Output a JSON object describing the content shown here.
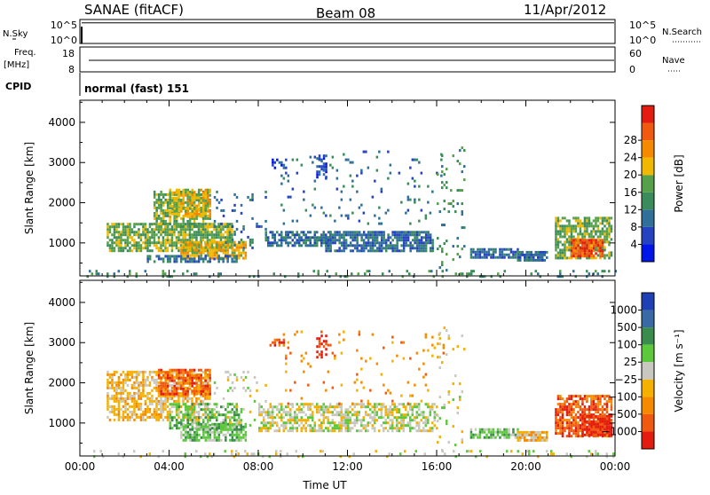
{
  "header": {
    "station": "SANAE (fitACF)",
    "beam": "Beam 08",
    "date": "11/Apr/2012"
  },
  "panels": {
    "nsky": {
      "left_label": "N.Sky",
      "right_label": "N.Search",
      "ticks_left": [
        "10^5",
        "10^0"
      ],
      "ticks_right": [
        "10^5",
        "10^0"
      ],
      "level": 0.86
    },
    "freq": {
      "left_label_1": "Freq.",
      "left_label_2": "[MHz]",
      "right_label": "Nave",
      "ticks_left": [
        "18",
        "8"
      ],
      "ticks_right": [
        "60",
        "0"
      ],
      "level": 0.5
    },
    "cpid": {
      "label": "CPID",
      "text": "normal (fast) 151"
    }
  },
  "chart_data": [
    {
      "type": "heatmap",
      "name": "power",
      "ylabel": "Slant Range [km]",
      "yticks": [
        "1000",
        "2000",
        "3000",
        "4000"
      ],
      "ylim": [
        180,
        4550
      ],
      "colorbar": {
        "label": "Power [dB]",
        "ticks": [
          "4",
          "8",
          "12",
          "16",
          "20",
          "24",
          "28"
        ],
        "colors": [
          "#0015e8",
          "#2543c0",
          "#2f6f9a",
          "#3a8c5a",
          "#57a04a",
          "#f0b800",
          "#f58a00",
          "#f05a10",
          "#e41b0f"
        ]
      },
      "echo_regions": [
        {
          "x": [
            1.2,
            6.8
          ],
          "y": [
            800,
            1500
          ],
          "dens": 0.75,
          "level": 4
        },
        {
          "x": [
            3.3,
            5.8
          ],
          "y": [
            1400,
            2300
          ],
          "dens": 0.7,
          "level": 4
        },
        {
          "x": [
            4.0,
            5.8
          ],
          "y": [
            1650,
            2350
          ],
          "dens": 0.6,
          "level": 5
        },
        {
          "x": [
            4.5,
            7.4
          ],
          "y": [
            650,
            1050
          ],
          "dens": 0.8,
          "level": 5
        },
        {
          "x": [
            3.0,
            7.0
          ],
          "y": [
            560,
            700
          ],
          "dens": 0.65,
          "level": 2
        },
        {
          "x": [
            6.0,
            8.3
          ],
          "y": [
            900,
            2300
          ],
          "dens": 0.1,
          "level": 2
        },
        {
          "x": [
            8.3,
            11.2
          ],
          "y": [
            950,
            1300
          ],
          "dens": 0.7,
          "level": 2
        },
        {
          "x": [
            11.0,
            15.8
          ],
          "y": [
            820,
            1300
          ],
          "dens": 0.78,
          "level": 2
        },
        {
          "x": [
            9.0,
            16.3
          ],
          "y": [
            1500,
            3300
          ],
          "dens": 0.05,
          "level": 2
        },
        {
          "x": [
            8.5,
            9.2
          ],
          "y": [
            2900,
            3100
          ],
          "dens": 0.5,
          "level": 1
        },
        {
          "x": [
            10.6,
            11.0
          ],
          "y": [
            2650,
            3200
          ],
          "dens": 0.5,
          "level": 1
        },
        {
          "x": [
            17.5,
            19.6
          ],
          "y": [
            640,
            870
          ],
          "dens": 0.7,
          "level": 2
        },
        {
          "x": [
            19.6,
            20.9
          ],
          "y": [
            600,
            800
          ],
          "dens": 0.85,
          "level": 2
        },
        {
          "x": [
            21.3,
            23.8
          ],
          "y": [
            650,
            1650
          ],
          "dens": 0.7,
          "level": 4
        },
        {
          "x": [
            22.0,
            23.4
          ],
          "y": [
            700,
            1100
          ],
          "dens": 0.85,
          "level": 7
        },
        {
          "x": [
            16.0,
            17.2
          ],
          "y": [
            300,
            3400
          ],
          "dens": 0.09,
          "level": 3
        },
        {
          "x": [
            0.0,
            24.0
          ],
          "y": [
            190,
            330
          ],
          "dens": 0.12,
          "level": 3
        }
      ]
    },
    {
      "type": "heatmap",
      "name": "velocity",
      "xlabel": "Time UT",
      "ylabel": "Slant Range [km]",
      "xticks": [
        "00:00",
        "04:00",
        "08:00",
        "12:00",
        "16:00",
        "20:00",
        "00:00"
      ],
      "xlim_hours": [
        0,
        24
      ],
      "yticks": [
        "1000",
        "2000",
        "3000",
        "4000"
      ],
      "ylim": [
        180,
        4550
      ],
      "colorbar": {
        "label": "Velocity [m s⁻¹]",
        "ticks": [
          "1000",
          "500",
          "100",
          "25",
          "−25",
          "−100",
          "−500",
          "−1000"
        ],
        "colors": [
          "#1f3fb4",
          "#3a6aa6",
          "#3a8c4c",
          "#5cc83c",
          "#c8c8c0",
          "#f5b000",
          "#f58a00",
          "#f05a10",
          "#e41b0f"
        ]
      },
      "echo_regions": [
        {
          "x": [
            1.2,
            5.8
          ],
          "y": [
            1100,
            2300
          ],
          "dens": 0.65,
          "level": 5
        },
        {
          "x": [
            3.5,
            5.8
          ],
          "y": [
            1700,
            2350
          ],
          "dens": 0.65,
          "level": 7
        },
        {
          "x": [
            4.0,
            7.2
          ],
          "y": [
            900,
            1500
          ],
          "dens": 0.55,
          "level": 3
        },
        {
          "x": [
            4.5,
            7.4
          ],
          "y": [
            600,
            1000
          ],
          "dens": 0.75,
          "level": 3
        },
        {
          "x": [
            6.0,
            8.3
          ],
          "y": [
            900,
            2300
          ],
          "dens": 0.1,
          "level": 4
        },
        {
          "x": [
            8.0,
            16.0
          ],
          "y": [
            800,
            1500
          ],
          "dens": 0.6,
          "level": 4
        },
        {
          "x": [
            8.5,
            9.2
          ],
          "y": [
            2950,
            3100
          ],
          "dens": 0.5,
          "level": 7
        },
        {
          "x": [
            10.6,
            11.0
          ],
          "y": [
            2650,
            3200
          ],
          "dens": 0.5,
          "level": 8
        },
        {
          "x": [
            9.0,
            16.3
          ],
          "y": [
            1500,
            3300
          ],
          "dens": 0.05,
          "level": 6
        },
        {
          "x": [
            17.5,
            19.6
          ],
          "y": [
            620,
            870
          ],
          "dens": 0.7,
          "level": 3
        },
        {
          "x": [
            19.6,
            20.9
          ],
          "y": [
            600,
            800
          ],
          "dens": 0.85,
          "level": 5
        },
        {
          "x": [
            21.3,
            23.8
          ],
          "y": [
            650,
            1700
          ],
          "dens": 0.7,
          "level": 7
        },
        {
          "x": [
            22.5,
            23.8
          ],
          "y": [
            700,
            1200
          ],
          "dens": 0.85,
          "level": 8
        },
        {
          "x": [
            16.0,
            17.2
          ],
          "y": [
            300,
            3400
          ],
          "dens": 0.09,
          "level": 4
        },
        {
          "x": [
            0.0,
            24.0
          ],
          "y": [
            190,
            330
          ],
          "dens": 0.12,
          "level": 4
        }
      ]
    }
  ]
}
